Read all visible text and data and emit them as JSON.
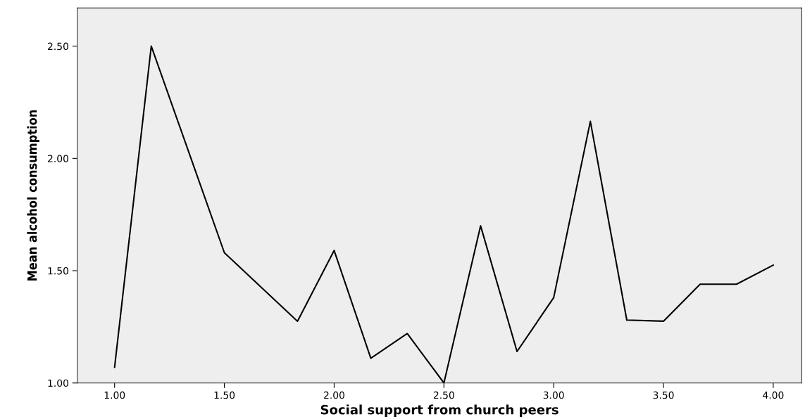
{
  "chart_data": {
    "type": "line",
    "xlabel": "Social support from church peers",
    "ylabel": "Mean alcohol consumption",
    "x": [
      1.0,
      1.167,
      1.5,
      1.833,
      2.0,
      2.167,
      2.333,
      2.5,
      2.667,
      2.833,
      3.0,
      3.167,
      3.333,
      3.5,
      3.667,
      3.833,
      4.0
    ],
    "series": [
      {
        "color": "#000000",
        "values": [
          1.07,
          2.5,
          1.58,
          1.275,
          1.59,
          1.11,
          1.22,
          1.0,
          1.7,
          1.14,
          1.38,
          2.165,
          1.28,
          1.275,
          1.44,
          1.44,
          1.525
        ]
      }
    ],
    "xlim": [
      0.83,
      4.13
    ],
    "ylim": [
      1.0,
      2.67
    ],
    "xticks": [
      {
        "value": 1,
        "label": "1.00"
      },
      {
        "value": 1.5,
        "label": "1.50"
      },
      {
        "value": 2,
        "label": "2.00"
      },
      {
        "value": 2.5,
        "label": "2.50"
      },
      {
        "value": 3,
        "label": "3.00"
      },
      {
        "value": 3.5,
        "label": "3.50"
      },
      {
        "value": 4,
        "label": "4.00"
      }
    ],
    "yticks": [
      {
        "value": 1,
        "label": "1.00"
      },
      {
        "value": 1.5,
        "label": "1.50"
      },
      {
        "value": 2,
        "label": "2.00"
      },
      {
        "value": 2.5,
        "label": "2.50"
      }
    ],
    "grid": false,
    "marker": "none",
    "line_style": "solid"
  }
}
